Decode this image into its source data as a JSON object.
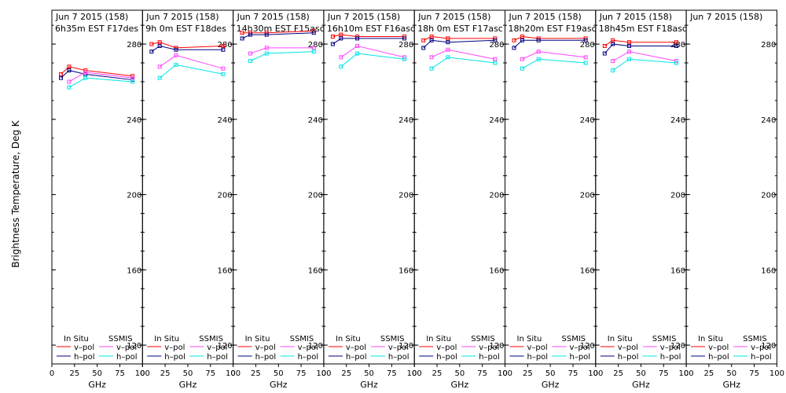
{
  "ylabel": "Brightness Temperature, Deg K",
  "y_ticks": [
    120,
    160,
    200,
    240,
    280
  ],
  "x_ticks": [
    0,
    25,
    50,
    75,
    100
  ],
  "ylim": [
    110,
    298
  ],
  "xlim": [
    0,
    100
  ],
  "colors": {
    "insitu_v": "#ff0000",
    "insitu_h": "#000080",
    "ssmis_v": "#ff44ff",
    "ssmis_h": "#00e5e5",
    "axis": "#000000",
    "background": "#ffffff"
  },
  "legend": {
    "insitu_title": "In Situ",
    "ssmis_title": "SSMIS",
    "vpol": "v–pol",
    "hpol": "h–pol"
  },
  "chart_data": [
    {
      "type": "line",
      "title": "Jun 7 2015 (158)",
      "subtitle": "6h35m EST F17des",
      "xlabel": "GHz",
      "ylabel": "Brightness Temperature, Deg K",
      "ylim": [
        110,
        298
      ],
      "series": [
        {
          "name": "In Situ v-pol",
          "x": [
            10,
            19,
            37,
            89
          ],
          "y": [
            264,
            268,
            266,
            263
          ]
        },
        {
          "name": "In Situ h-pol",
          "x": [
            10,
            19,
            37,
            89
          ],
          "y": [
            262,
            266,
            264,
            261
          ]
        },
        {
          "name": "SSMIS v-pol",
          "x": [
            19,
            37,
            89
          ],
          "y": [
            260,
            265,
            262
          ]
        },
        {
          "name": "SSMIS h-pol",
          "x": [
            19,
            37,
            89
          ],
          "y": [
            257,
            262,
            260
          ]
        }
      ]
    },
    {
      "type": "line",
      "title": "Jun 7 2015 (158)",
      "subtitle": "9h 0m EST F18des",
      "xlabel": "GHz",
      "ylabel": "",
      "ylim": [
        110,
        298
      ],
      "series": [
        {
          "name": "In Situ v-pol",
          "x": [
            10,
            19,
            37,
            89
          ],
          "y": [
            280,
            281,
            278,
            279
          ]
        },
        {
          "name": "In Situ h-pol",
          "x": [
            10,
            19,
            37,
            89
          ],
          "y": [
            276,
            279,
            277,
            277
          ]
        },
        {
          "name": "SSMIS v-pol",
          "x": [
            19,
            37,
            89
          ],
          "y": [
            268,
            274,
            267
          ]
        },
        {
          "name": "SSMIS h-pol",
          "x": [
            19,
            37,
            89
          ],
          "y": [
            262,
            269,
            264
          ]
        }
      ]
    },
    {
      "type": "line",
      "title": "Jun 7 2015 (158)",
      "subtitle": "14h30m EST F15asc",
      "xlabel": "GHz",
      "ylabel": "",
      "ylim": [
        110,
        298
      ],
      "series": [
        {
          "name": "In Situ v-pol",
          "x": [
            10,
            19,
            37,
            89
          ],
          "y": [
            286,
            286,
            286,
            287
          ]
        },
        {
          "name": "In Situ h-pol",
          "x": [
            10,
            19,
            37,
            89
          ],
          "y": [
            283,
            285,
            285,
            286
          ]
        },
        {
          "name": "SSMIS v-pol",
          "x": [
            19,
            37,
            89
          ],
          "y": [
            275,
            278,
            278
          ]
        },
        {
          "name": "SSMIS h-pol",
          "x": [
            19,
            37,
            89
          ],
          "y": [
            271,
            275,
            276
          ]
        }
      ]
    },
    {
      "type": "line",
      "title": "Jun 7 2015 (158)",
      "subtitle": "16h10m EST F16asc",
      "xlabel": "GHz",
      "ylabel": "",
      "ylim": [
        110,
        298
      ],
      "series": [
        {
          "name": "In Situ v-pol",
          "x": [
            10,
            19,
            37,
            89
          ],
          "y": [
            284,
            285,
            284,
            284
          ]
        },
        {
          "name": "In Situ h-pol",
          "x": [
            10,
            19,
            37,
            89
          ],
          "y": [
            280,
            283,
            283,
            283
          ]
        },
        {
          "name": "SSMIS v-pol",
          "x": [
            19,
            37,
            89
          ],
          "y": [
            273,
            279,
            273
          ]
        },
        {
          "name": "SSMIS h-pol",
          "x": [
            19,
            37,
            89
          ],
          "y": [
            268,
            275,
            272
          ]
        }
      ]
    },
    {
      "type": "line",
      "title": "Jun 7 2015 (158)",
      "subtitle": "18h 0m EST F17asc",
      "xlabel": "GHz",
      "ylabel": "",
      "ylim": [
        110,
        298
      ],
      "series": [
        {
          "name": "In Situ v-pol",
          "x": [
            10,
            19,
            37,
            89
          ],
          "y": [
            282,
            284,
            283,
            283
          ]
        },
        {
          "name": "In Situ h-pol",
          "x": [
            10,
            19,
            37,
            89
          ],
          "y": [
            278,
            282,
            281,
            282
          ]
        },
        {
          "name": "SSMIS v-pol",
          "x": [
            19,
            37,
            89
          ],
          "y": [
            273,
            277,
            272
          ]
        },
        {
          "name": "SSMIS h-pol",
          "x": [
            19,
            37,
            89
          ],
          "y": [
            267,
            273,
            270
          ]
        }
      ]
    },
    {
      "type": "line",
      "title": "Jun 7 2015 (158)",
      "subtitle": "18h20m EST F19asc",
      "xlabel": "GHz",
      "ylabel": "",
      "ylim": [
        110,
        298
      ],
      "series": [
        {
          "name": "In Situ v-pol",
          "x": [
            10,
            19,
            37,
            89
          ],
          "y": [
            282,
            284,
            283,
            283
          ]
        },
        {
          "name": "In Situ h-pol",
          "x": [
            10,
            19,
            37,
            89
          ],
          "y": [
            278,
            282,
            282,
            282
          ]
        },
        {
          "name": "SSMIS v-pol",
          "x": [
            19,
            37,
            89
          ],
          "y": [
            272,
            276,
            273
          ]
        },
        {
          "name": "SSMIS h-pol",
          "x": [
            19,
            37,
            89
          ],
          "y": [
            267,
            272,
            270
          ]
        }
      ]
    },
    {
      "type": "line",
      "title": "Jun 7 2015 (158)",
      "subtitle": "18h45m EST F18asc",
      "xlabel": "GHz",
      "ylabel": "",
      "ylim": [
        110,
        298
      ],
      "series": [
        {
          "name": "In Situ v-pol",
          "x": [
            10,
            19,
            37,
            89
          ],
          "y": [
            279,
            282,
            281,
            281
          ]
        },
        {
          "name": "In Situ h-pol",
          "x": [
            10,
            19,
            37,
            89
          ],
          "y": [
            275,
            280,
            279,
            279
          ]
        },
        {
          "name": "SSMIS v-pol",
          "x": [
            19,
            37,
            89
          ],
          "y": [
            271,
            276,
            271
          ]
        },
        {
          "name": "SSMIS h-pol",
          "x": [
            19,
            37,
            89
          ],
          "y": [
            266,
            272,
            270
          ]
        }
      ]
    },
    {
      "type": "line",
      "title": "Jun 7 2015 (158)",
      "subtitle": "",
      "xlabel": "GHz",
      "ylabel": "",
      "ylim": [
        110,
        298
      ],
      "series": []
    }
  ]
}
